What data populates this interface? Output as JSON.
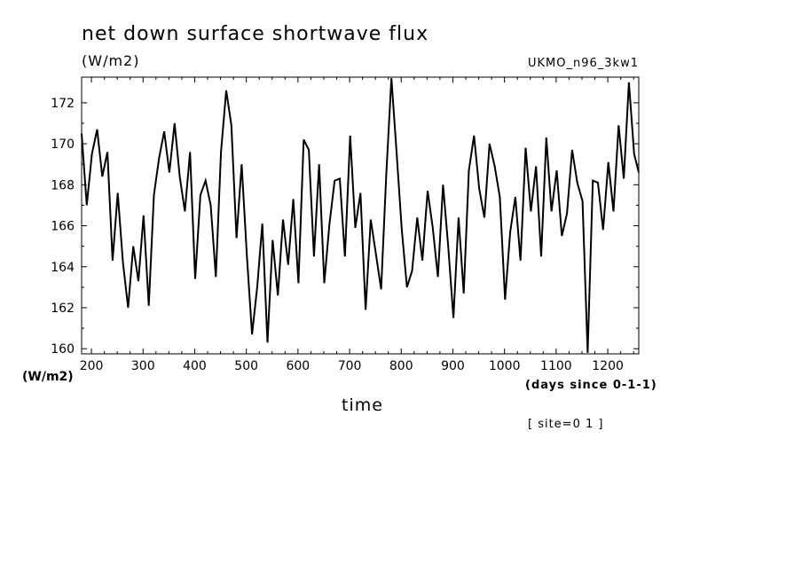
{
  "chart_data": {
    "type": "line",
    "title": "net down surface shortwave flux",
    "ylabel_top": "(W/m2)",
    "ylabel_bottom": "(W/m2)",
    "model": "UKMO_n96_3kw1",
    "xlabel": "time",
    "x_units": "(days since 0-1-1)",
    "site": "[ site=0 1 ]",
    "xlim": [
      181,
      1260
    ],
    "ylim": [
      159.75,
      173.25
    ],
    "xticks": [
      200,
      300,
      400,
      500,
      600,
      700,
      800,
      900,
      1000,
      1100,
      1200
    ],
    "yticks": [
      160,
      162,
      164,
      166,
      168,
      170,
      172
    ],
    "grid": false,
    "line_color": "#000000",
    "x": [
      181,
      191,
      201,
      211,
      221,
      231,
      241,
      251,
      261,
      271,
      281,
      291,
      301,
      311,
      321,
      331,
      341,
      351,
      361,
      371,
      381,
      391,
      401,
      411,
      421,
      431,
      441,
      451,
      461,
      471,
      481,
      491,
      501,
      511,
      521,
      531,
      541,
      551,
      561,
      571,
      581,
      591,
      601,
      611,
      621,
      631,
      641,
      651,
      661,
      671,
      681,
      691,
      701,
      711,
      721,
      731,
      741,
      751,
      761,
      771,
      781,
      791,
      801,
      811,
      821,
      831,
      841,
      851,
      861,
      871,
      881,
      891,
      901,
      911,
      921,
      931,
      941,
      951,
      961,
      971,
      981,
      991,
      1001,
      1011,
      1021,
      1031,
      1041,
      1051,
      1061,
      1071,
      1081,
      1091,
      1101,
      1111,
      1121,
      1131,
      1141,
      1151,
      1161,
      1171,
      1181,
      1191,
      1201,
      1211,
      1221,
      1231,
      1241,
      1251,
      1260
    ],
    "y": [
      170.5,
      167.0,
      169.5,
      170.7,
      168.4,
      169.6,
      164.3,
      167.6,
      164.2,
      162.0,
      165.0,
      163.3,
      166.5,
      162.1,
      167.5,
      169.3,
      170.6,
      168.6,
      171.0,
      168.4,
      166.7,
      169.6,
      163.4,
      167.5,
      168.2,
      167.0,
      163.5,
      169.6,
      172.6,
      170.9,
      165.4,
      169.0,
      164.6,
      160.7,
      163.0,
      166.1,
      160.3,
      165.3,
      162.6,
      166.3,
      164.1,
      167.3,
      163.2,
      170.2,
      169.7,
      164.5,
      169.0,
      163.2,
      166.1,
      168.2,
      168.3,
      164.5,
      170.4,
      165.9,
      167.6,
      161.9,
      166.3,
      164.6,
      162.9,
      168.5,
      173.2,
      169.6,
      165.8,
      163.0,
      163.8,
      166.4,
      164.3,
      167.7,
      165.9,
      163.5,
      168.0,
      165.0,
      161.5,
      166.4,
      162.7,
      168.7,
      170.4,
      167.8,
      166.4,
      170.0,
      168.9,
      167.4,
      162.4,
      165.7,
      167.4,
      164.3,
      169.8,
      166.7,
      168.9,
      164.5,
      170.3,
      166.7,
      168.7,
      165.5,
      166.6,
      169.7,
      168.1,
      167.2,
      159.8,
      168.2,
      168.1,
      165.8,
      169.1,
      166.7,
      170.9,
      168.3,
      173.0,
      169.5,
      168.6
    ]
  }
}
